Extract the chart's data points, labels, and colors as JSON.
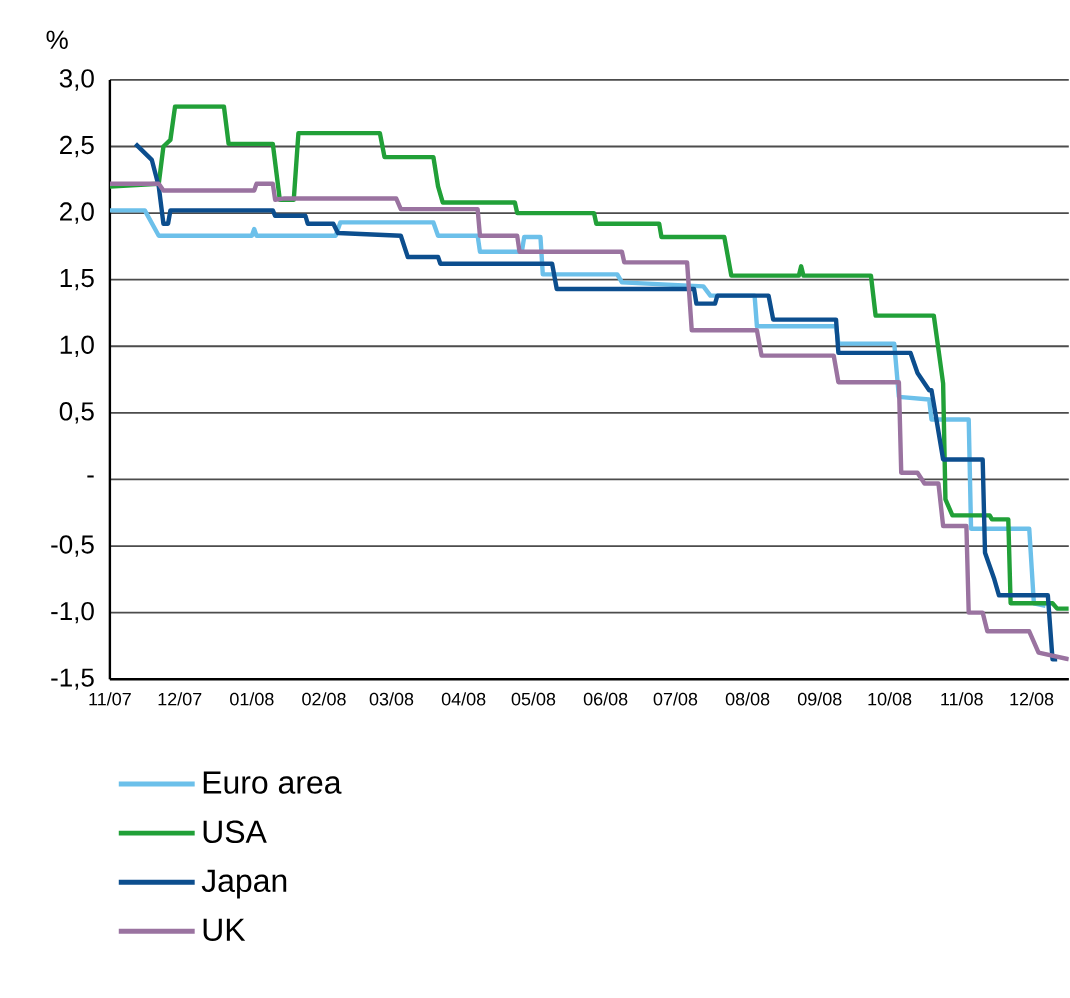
{
  "chart_data": {
    "type": "line",
    "ylabel": "%",
    "xlim": [
      "2007-11-01",
      "2008-12-17"
    ],
    "ylim": [
      -1.5,
      3.0
    ],
    "xticks": [
      {
        "value": "2007-11-01",
        "label": "11/07"
      },
      {
        "value": "2007-12-01",
        "label": "12/07"
      },
      {
        "value": "2008-01-01",
        "label": "01/08"
      },
      {
        "value": "2008-02-01",
        "label": "02/08"
      },
      {
        "value": "2008-03-01",
        "label": "03/08"
      },
      {
        "value": "2008-04-01",
        "label": "04/08"
      },
      {
        "value": "2008-05-01",
        "label": "05/08"
      },
      {
        "value": "2008-06-01",
        "label": "06/08"
      },
      {
        "value": "2008-07-01",
        "label": "07/08"
      },
      {
        "value": "2008-08-01",
        "label": "08/08"
      },
      {
        "value": "2008-09-01",
        "label": "09/08"
      },
      {
        "value": "2008-10-01",
        "label": "10/08"
      },
      {
        "value": "2008-11-01",
        "label": "11/08"
      },
      {
        "value": "2008-12-01",
        "label": "12/08"
      }
    ],
    "yticks": [
      {
        "value": -1.5,
        "label": "-1,5"
      },
      {
        "value": -1.0,
        "label": "-1,0"
      },
      {
        "value": -0.5,
        "label": "-0,5"
      },
      {
        "value": 0,
        "label": "-"
      },
      {
        "value": 0.5,
        "label": "0,5"
      },
      {
        "value": 1.0,
        "label": "1,0"
      },
      {
        "value": 1.5,
        "label": "1,5"
      },
      {
        "value": 2.0,
        "label": "2,0"
      },
      {
        "value": 2.5,
        "label": "2,5"
      },
      {
        "value": 3.0,
        "label": "3,0"
      }
    ],
    "grid": "y",
    "legend": "bottom",
    "line_style": "solid",
    "series": [
      {
        "name": "Euro area",
        "color": "#6cc0ea",
        "x": [
          "2007-11-01",
          "2007-11-16",
          "2007-11-22",
          "2008-01-01",
          "2008-01-02",
          "2008-01-03",
          "2008-02-06",
          "2008-02-08",
          "2008-03-19",
          "2008-03-21",
          "2008-04-07",
          "2008-04-08",
          "2008-04-26",
          "2008-04-27",
          "2008-05-04",
          "2008-05-05",
          "2008-06-06",
          "2008-06-08",
          "2008-07-13",
          "2008-07-16",
          "2008-08-04",
          "2008-08-05",
          "2008-09-08",
          "2008-09-09",
          "2008-10-03",
          "2008-10-05",
          "2008-10-18",
          "2008-10-19",
          "2008-11-04",
          "2008-11-05",
          "2008-11-30",
          "2008-12-02",
          "2008-12-07"
        ],
        "values": [
          2.02,
          2.02,
          1.83,
          1.83,
          1.88,
          1.83,
          1.83,
          1.93,
          1.93,
          1.83,
          1.83,
          1.71,
          1.71,
          1.82,
          1.82,
          1.54,
          1.54,
          1.48,
          1.45,
          1.38,
          1.38,
          1.15,
          1.15,
          1.02,
          1.02,
          0.62,
          0.6,
          0.45,
          0.45,
          -0.37,
          -0.37,
          -0.93,
          -0.95
        ]
      },
      {
        "name": "USA",
        "color": "#21a038",
        "x": [
          "2007-11-01",
          "2007-11-22",
          "2007-11-24",
          "2007-11-27",
          "2007-11-29",
          "2007-12-20",
          "2007-12-22",
          "2008-01-10",
          "2008-01-13",
          "2008-01-19",
          "2008-01-21",
          "2008-02-25",
          "2008-02-27",
          "2008-03-19",
          "2008-03-21",
          "2008-03-23",
          "2008-04-23",
          "2008-04-24",
          "2008-05-27",
          "2008-05-28",
          "2008-06-24",
          "2008-06-25",
          "2008-07-22",
          "2008-07-25",
          "2008-08-23",
          "2008-08-24",
          "2008-08-25",
          "2008-09-23",
          "2008-09-25",
          "2008-10-20",
          "2008-10-24",
          "2008-10-25",
          "2008-10-28",
          "2008-11-13",
          "2008-11-14",
          "2008-11-21",
          "2008-11-22",
          "2008-12-10",
          "2008-12-12",
          "2008-12-17"
        ],
        "values": [
          2.2,
          2.22,
          2.5,
          2.55,
          2.8,
          2.8,
          2.52,
          2.52,
          2.1,
          2.1,
          2.6,
          2.6,
          2.42,
          2.42,
          2.2,
          2.08,
          2.08,
          2.0,
          2.0,
          1.92,
          1.92,
          1.82,
          1.82,
          1.53,
          1.53,
          1.6,
          1.53,
          1.53,
          1.23,
          1.23,
          0.72,
          -0.15,
          -0.27,
          -0.27,
          -0.3,
          -0.3,
          -0.93,
          -0.93,
          -0.97,
          -0.97
        ]
      },
      {
        "name": "Japan",
        "color": "#0c4e8e",
        "x": [
          "2007-11-12",
          "2007-11-19",
          "2007-11-22",
          "2007-11-24",
          "2007-11-26",
          "2007-11-27",
          "2008-01-10",
          "2008-01-11",
          "2008-01-24",
          "2008-01-25",
          "2008-02-05",
          "2008-02-07",
          "2008-03-05",
          "2008-03-08",
          "2008-03-21",
          "2008-03-22",
          "2008-05-09",
          "2008-05-11",
          "2008-07-09",
          "2008-07-10",
          "2008-07-18",
          "2008-07-19",
          "2008-08-10",
          "2008-08-12",
          "2008-09-08",
          "2008-09-09",
          "2008-10-10",
          "2008-10-13",
          "2008-10-18",
          "2008-10-19",
          "2008-10-24",
          "2008-11-10",
          "2008-11-11",
          "2008-11-15",
          "2008-11-17",
          "2008-12-08",
          "2008-12-10",
          "2008-12-12"
        ],
        "values": [
          2.52,
          2.4,
          2.2,
          1.92,
          1.92,
          2.02,
          2.02,
          1.98,
          1.98,
          1.92,
          1.92,
          1.85,
          1.83,
          1.67,
          1.67,
          1.62,
          1.62,
          1.43,
          1.43,
          1.32,
          1.32,
          1.38,
          1.38,
          1.2,
          1.2,
          0.95,
          0.95,
          0.8,
          0.67,
          0.67,
          0.15,
          0.15,
          -0.55,
          -0.75,
          -0.87,
          -0.87,
          -1.35,
          -1.35
        ]
      },
      {
        "name": "UK",
        "color": "#9a73a0",
        "x": [
          "2007-11-01",
          "2007-11-22",
          "2007-11-24",
          "2008-01-02",
          "2008-01-03",
          "2008-01-10",
          "2008-01-11",
          "2008-01-15",
          "2008-03-03",
          "2008-03-05",
          "2008-04-07",
          "2008-04-08",
          "2008-04-24",
          "2008-04-25",
          "2008-06-08",
          "2008-06-09",
          "2008-07-06",
          "2008-07-08",
          "2008-08-05",
          "2008-08-07",
          "2008-09-07",
          "2008-09-09",
          "2008-10-05",
          "2008-10-06",
          "2008-10-13",
          "2008-10-16",
          "2008-10-22",
          "2008-10-24",
          "2008-11-03",
          "2008-11-04",
          "2008-11-10",
          "2008-11-12",
          "2008-11-30",
          "2008-12-04",
          "2008-12-17"
        ],
        "values": [
          2.22,
          2.22,
          2.17,
          2.17,
          2.22,
          2.22,
          2.1,
          2.11,
          2.11,
          2.03,
          2.03,
          1.83,
          1.83,
          1.71,
          1.71,
          1.63,
          1.63,
          1.12,
          1.12,
          0.93,
          0.93,
          0.73,
          0.73,
          0.05,
          0.05,
          -0.03,
          -0.03,
          -0.35,
          -0.35,
          -1.0,
          -1.0,
          -1.14,
          -1.14,
          -1.3,
          -1.35
        ]
      }
    ]
  }
}
